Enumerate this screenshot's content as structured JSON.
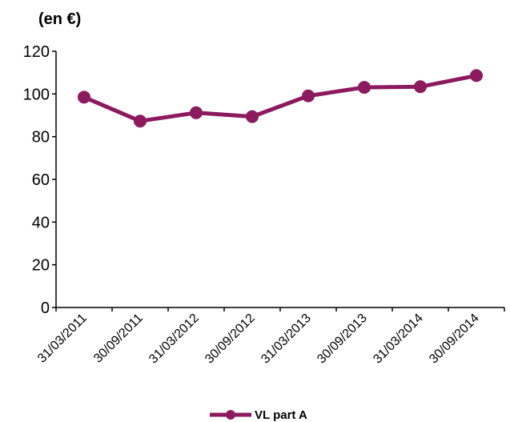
{
  "chart_data": {
    "type": "line",
    "unit_label": "(en €)",
    "categories": [
      "31/03/2011",
      "30/09/2011",
      "31/03/2012",
      "30/09/2012",
      "31/03/2013",
      "30/09/2013",
      "31/03/2014",
      "30/09/2014"
    ],
    "series": [
      {
        "name": "VL part A",
        "values": [
          98.5,
          87.3,
          91.2,
          89.4,
          99.1,
          103.1,
          103.4,
          108.6
        ],
        "color": "#8B1A5E"
      }
    ],
    "ylim": [
      0,
      120
    ],
    "yticks": [
      "0",
      "20",
      "40",
      "60",
      "80",
      "100",
      "120"
    ],
    "grid": false,
    "legend_position": "bottom"
  }
}
